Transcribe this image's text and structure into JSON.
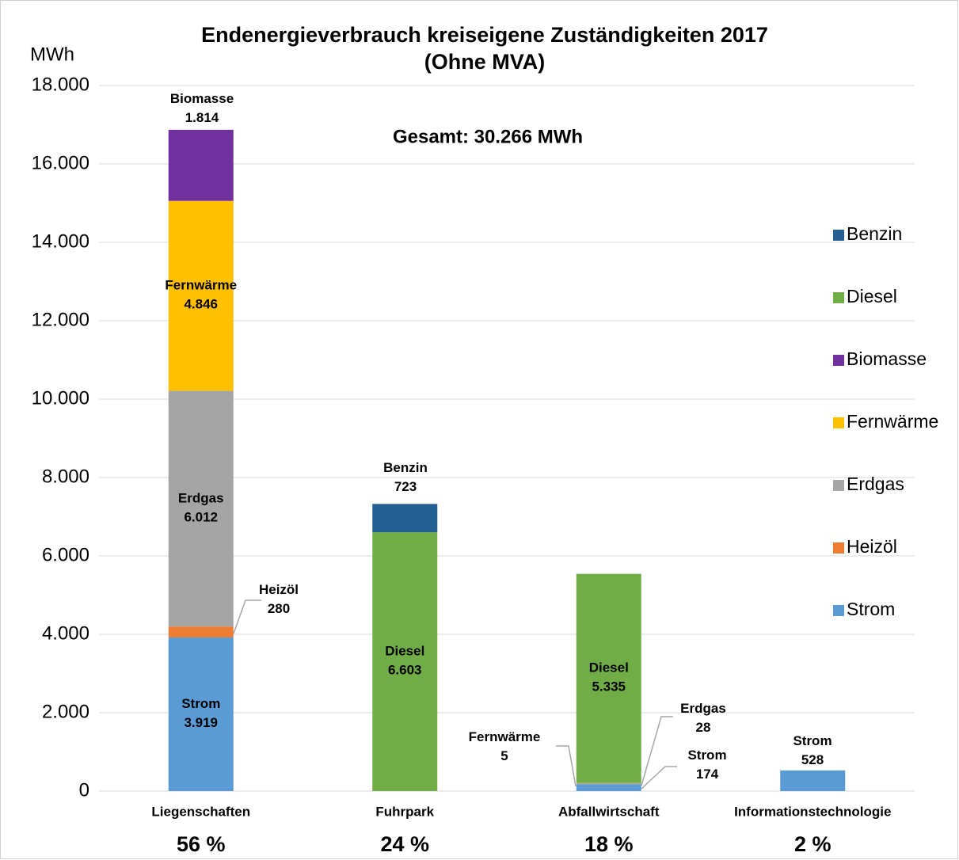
{
  "chart_data": {
    "type": "stacked_bar",
    "title": "Endenergieverbrauch kreiseigene Zuständigkeiten 2017",
    "subtitle": "(Ohne MVA)",
    "y_label": "MWh",
    "annotation": "Gesamt: 30.266 MWh",
    "categories": [
      "Liegenschaften",
      "Fuhrpark",
      "Abfallwirtschaft",
      "Informationstechnologie"
    ],
    "shares": [
      "56 %",
      "24 %",
      "18 %",
      "2 %"
    ],
    "series": [
      {
        "name": "Strom",
        "color": "#5b9bd5",
        "values": [
          3919,
          0,
          174,
          528
        ],
        "value_labels": [
          "3.919",
          null,
          "174",
          "528"
        ]
      },
      {
        "name": "Heizöl",
        "color": "#ed7d31",
        "values": [
          280,
          0,
          0,
          0
        ],
        "value_labels": [
          "280",
          null,
          null,
          null
        ]
      },
      {
        "name": "Erdgas",
        "color": "#a5a5a5",
        "values": [
          6012,
          0,
          28,
          0
        ],
        "value_labels": [
          "6.012",
          null,
          "28",
          null
        ]
      },
      {
        "name": "Fernwärme",
        "color": "#ffc000",
        "values": [
          4846,
          0,
          5,
          0
        ],
        "value_labels": [
          "4.846",
          null,
          "5",
          null
        ]
      },
      {
        "name": "Biomasse",
        "color": "#7030a0",
        "values": [
          1814,
          0,
          0,
          0
        ],
        "value_labels": [
          "1.814",
          null,
          null,
          null
        ]
      },
      {
        "name": "Diesel",
        "color": "#70ad47",
        "values": [
          0,
          6603,
          5335,
          0
        ],
        "value_labels": [
          null,
          "6.603",
          "5.335",
          null
        ]
      },
      {
        "name": "Benzin",
        "color": "#255e91",
        "values": [
          0,
          723,
          0,
          0
        ],
        "value_labels": [
          null,
          "723",
          null,
          null
        ]
      }
    ],
    "ylim": [
      0,
      18000
    ],
    "yticks": [
      0,
      {
        "value": 2000,
        "label": "2.000"
      },
      {
        "value": 4000,
        "label": "4.000"
      },
      {
        "value": 6000,
        "label": "6.000"
      },
      {
        "value": 8000,
        "label": "8.000"
      },
      {
        "value": 10000,
        "label": "10.000"
      },
      {
        "value": 12000,
        "label": "12.000"
      },
      {
        "value": 14000,
        "label": "14.000"
      },
      {
        "value": 16000,
        "label": "16.000"
      },
      {
        "value": 18000,
        "label": "18.000"
      }
    ],
    "grid": true,
    "legend": "right"
  }
}
